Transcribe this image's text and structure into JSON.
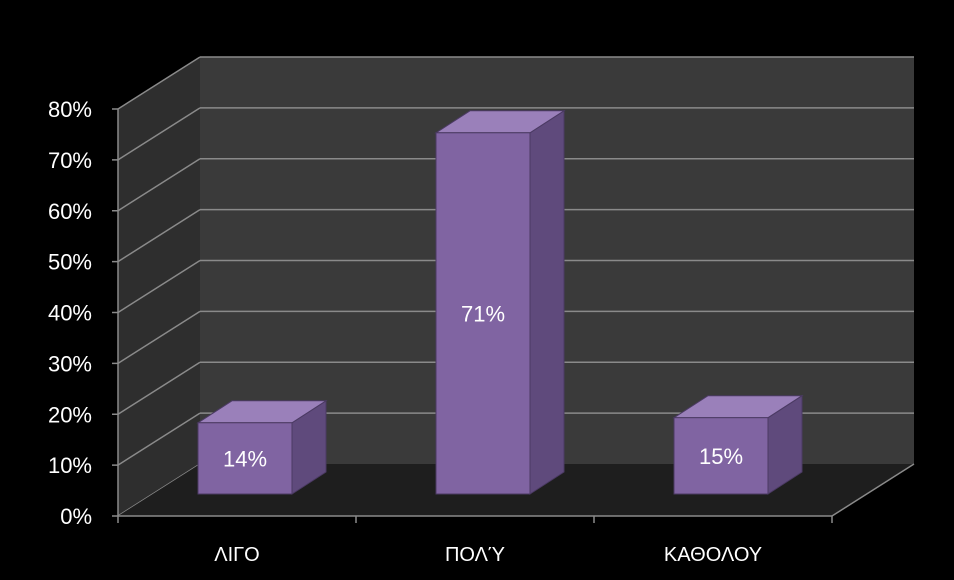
{
  "chart_data": {
    "type": "bar",
    "categories": [
      "ΛΙΓΟ",
      "ΠΟΛΎ",
      "ΚΑΘΟΛΟΥ"
    ],
    "values": [
      14,
      71,
      15
    ],
    "data_labels": [
      "14%",
      "71%",
      "15%"
    ],
    "ylim": [
      0,
      80
    ],
    "y_ticks": [
      0,
      10,
      20,
      30,
      40,
      50,
      60,
      70,
      80
    ],
    "y_tick_labels": [
      "0%",
      "10%",
      "20%",
      "30%",
      "40%",
      "50%",
      "60%",
      "70%",
      "80%"
    ],
    "title": "",
    "xlabel": "",
    "ylabel": "",
    "grid": true,
    "legend": "none",
    "style": "3d",
    "colors": {
      "bar_front": "#8064a2",
      "bar_top": "#9a80ba",
      "bar_side": "#5f4a7c",
      "bar_edge": "#4b3a63",
      "wall": "#3a3a3a",
      "side_wall": "#2e2e2e",
      "floor": "#1e1e1e",
      "grid": "#8a8a8a",
      "axis": "#8a8a8a",
      "text": "#ffffff",
      "background": "#000000"
    }
  }
}
